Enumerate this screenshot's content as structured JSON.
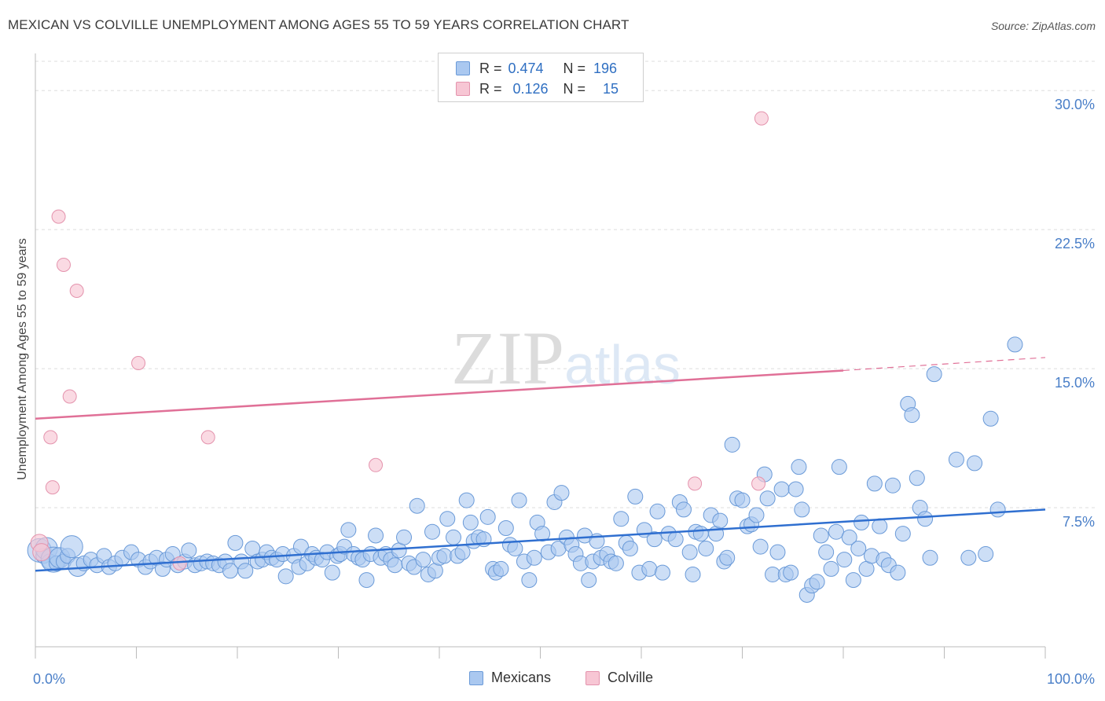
{
  "title": "MEXICAN VS COLVILLE UNEMPLOYMENT AMONG AGES 55 TO 59 YEARS CORRELATION CHART",
  "source": "Source: ZipAtlas.com",
  "colors": {
    "mexicans_fill": "#aac8f0",
    "mexicans_stroke": "#6a9ad8",
    "mexicans_line": "#2f6fd0",
    "colville_fill": "#f7c6d4",
    "colville_stroke": "#e493ad",
    "colville_line": "#e07097",
    "axis_text": "#4a7fc8",
    "grid": "#dddddd"
  },
  "legend": {
    "rows": [
      {
        "r_label": "R =",
        "r_value": "0.474",
        "n_label": "N =",
        "n_value": "196"
      },
      {
        "r_label": "R =",
        "r_value": "0.126",
        "n_label": "N =",
        "n_value": "15"
      }
    ],
    "bottom": [
      "Mexicans",
      "Colville"
    ]
  },
  "chart_data": {
    "type": "scatter",
    "title": "MEXICAN VS COLVILLE UNEMPLOYMENT AMONG AGES 55 TO 59 YEARS CORRELATION CHART",
    "xlabel": "",
    "ylabel": "Unemployment Among Ages 55 to 59 years",
    "xlim": [
      0,
      100
    ],
    "ylim": [
      0,
      32
    ],
    "x_tick_labels": [
      "0.0%",
      "100.0%"
    ],
    "y_ticks": [
      7.5,
      15.0,
      22.5,
      30.0
    ],
    "y_tick_labels": [
      "7.5%",
      "15.0%",
      "22.5%",
      "30.0%"
    ],
    "grid": true,
    "legend_position": "top-center",
    "watermark": "ZIPatlas",
    "series": [
      {
        "name": "Mexicans",
        "r": 0.474,
        "n": 196,
        "trend": {
          "x": [
            0,
            100
          ],
          "y": [
            4.1,
            7.4
          ]
        },
        "points": [
          [
            0.4,
            5.2
          ],
          [
            0.8,
            4.9
          ],
          [
            1.1,
            5.3
          ],
          [
            1.4,
            4.6
          ],
          [
            1.8,
            4.7
          ],
          [
            2.1,
            4.5
          ],
          [
            2.4,
            4.8
          ],
          [
            2.8,
            4.6
          ],
          [
            3.2,
            4.9
          ],
          [
            3.6,
            5.4
          ],
          [
            4.2,
            4.3
          ],
          [
            4.8,
            4.5
          ],
          [
            5.5,
            4.7
          ],
          [
            6.1,
            4.4
          ],
          [
            6.8,
            4.9
          ],
          [
            7.3,
            4.3
          ],
          [
            7.9,
            4.5
          ],
          [
            8.6,
            4.8
          ],
          [
            9.5,
            5.1
          ],
          [
            10.2,
            4.7
          ],
          [
            10.9,
            4.3
          ],
          [
            11.4,
            4.6
          ],
          [
            12.0,
            4.8
          ],
          [
            12.6,
            4.2
          ],
          [
            13.0,
            4.7
          ],
          [
            13.6,
            5.0
          ],
          [
            14.1,
            4.4
          ],
          [
            14.8,
            4.6
          ],
          [
            15.2,
            5.2
          ],
          [
            15.8,
            4.4
          ],
          [
            16.4,
            4.5
          ],
          [
            17.0,
            4.6
          ],
          [
            17.6,
            4.5
          ],
          [
            18.2,
            4.4
          ],
          [
            18.8,
            4.6
          ],
          [
            19.3,
            4.1
          ],
          [
            19.8,
            5.6
          ],
          [
            20.4,
            4.6
          ],
          [
            20.8,
            4.1
          ],
          [
            21.5,
            5.3
          ],
          [
            22.0,
            4.6
          ],
          [
            22.5,
            4.7
          ],
          [
            22.9,
            5.1
          ],
          [
            23.4,
            4.8
          ],
          [
            23.9,
            4.7
          ],
          [
            24.5,
            5.0
          ],
          [
            24.8,
            3.8
          ],
          [
            25.6,
            4.9
          ],
          [
            26.1,
            4.3
          ],
          [
            26.3,
            5.4
          ],
          [
            26.9,
            4.5
          ],
          [
            27.4,
            5.0
          ],
          [
            27.8,
            4.8
          ],
          [
            28.4,
            4.7
          ],
          [
            28.9,
            5.1
          ],
          [
            29.4,
            4.0
          ],
          [
            29.9,
            4.9
          ],
          [
            30.2,
            5.0
          ],
          [
            30.6,
            5.4
          ],
          [
            31.0,
            6.3
          ],
          [
            31.5,
            5.0
          ],
          [
            32.0,
            4.8
          ],
          [
            32.4,
            4.7
          ],
          [
            32.8,
            3.6
          ],
          [
            33.2,
            5.0
          ],
          [
            33.7,
            6.0
          ],
          [
            34.2,
            4.8
          ],
          [
            34.7,
            5.0
          ],
          [
            35.2,
            4.7
          ],
          [
            35.6,
            4.4
          ],
          [
            36.0,
            5.2
          ],
          [
            36.5,
            5.9
          ],
          [
            37.0,
            4.5
          ],
          [
            37.5,
            4.3
          ],
          [
            37.8,
            7.6
          ],
          [
            38.4,
            4.7
          ],
          [
            38.9,
            3.9
          ],
          [
            39.3,
            6.2
          ],
          [
            39.6,
            4.1
          ],
          [
            40.0,
            4.8
          ],
          [
            40.5,
            4.9
          ],
          [
            40.8,
            6.9
          ],
          [
            41.4,
            5.9
          ],
          [
            41.8,
            4.9
          ],
          [
            42.3,
            5.1
          ],
          [
            42.7,
            7.9
          ],
          [
            43.1,
            6.7
          ],
          [
            43.4,
            5.7
          ],
          [
            43.9,
            5.9
          ],
          [
            44.4,
            5.8
          ],
          [
            44.8,
            7.0
          ],
          [
            45.3,
            4.2
          ],
          [
            45.6,
            4.0
          ],
          [
            46.1,
            4.2
          ],
          [
            46.6,
            6.4
          ],
          [
            47.0,
            5.5
          ],
          [
            47.5,
            5.3
          ],
          [
            47.9,
            7.9
          ],
          [
            48.4,
            4.6
          ],
          [
            48.9,
            3.6
          ],
          [
            49.4,
            4.8
          ],
          [
            49.7,
            6.7
          ],
          [
            50.2,
            6.1
          ],
          [
            50.8,
            5.1
          ],
          [
            51.4,
            7.8
          ],
          [
            51.8,
            5.3
          ],
          [
            52.1,
            8.3
          ],
          [
            52.6,
            5.9
          ],
          [
            53.1,
            5.5
          ],
          [
            53.5,
            5.0
          ],
          [
            54.0,
            4.5
          ],
          [
            54.4,
            6.0
          ],
          [
            54.8,
            3.6
          ],
          [
            55.2,
            4.6
          ],
          [
            55.6,
            5.7
          ],
          [
            56.0,
            4.8
          ],
          [
            56.6,
            5.0
          ],
          [
            57.0,
            4.6
          ],
          [
            57.5,
            4.5
          ],
          [
            58.0,
            6.9
          ],
          [
            58.5,
            5.6
          ],
          [
            58.9,
            5.3
          ],
          [
            59.4,
            8.1
          ],
          [
            59.8,
            4.0
          ],
          [
            60.3,
            6.3
          ],
          [
            60.8,
            4.2
          ],
          [
            61.3,
            5.8
          ],
          [
            61.6,
            7.3
          ],
          [
            62.1,
            4.0
          ],
          [
            62.7,
            6.1
          ],
          [
            63.4,
            5.8
          ],
          [
            63.8,
            7.8
          ],
          [
            64.2,
            7.4
          ],
          [
            64.8,
            5.1
          ],
          [
            65.1,
            3.9
          ],
          [
            65.4,
            6.2
          ],
          [
            65.9,
            6.1
          ],
          [
            66.4,
            5.3
          ],
          [
            66.9,
            7.1
          ],
          [
            67.4,
            6.1
          ],
          [
            67.8,
            6.8
          ],
          [
            68.2,
            4.6
          ],
          [
            68.5,
            4.8
          ],
          [
            69.0,
            10.9
          ],
          [
            69.5,
            8.0
          ],
          [
            70.0,
            7.9
          ],
          [
            70.5,
            6.5
          ],
          [
            70.9,
            6.6
          ],
          [
            71.4,
            7.1
          ],
          [
            71.8,
            5.4
          ],
          [
            72.2,
            9.3
          ],
          [
            72.5,
            8.0
          ],
          [
            73.0,
            3.9
          ],
          [
            73.5,
            5.1
          ],
          [
            73.9,
            8.5
          ],
          [
            74.3,
            3.9
          ],
          [
            74.8,
            4.0
          ],
          [
            75.3,
            8.5
          ],
          [
            75.6,
            9.7
          ],
          [
            75.9,
            7.4
          ],
          [
            76.4,
            2.8
          ],
          [
            76.9,
            3.3
          ],
          [
            77.4,
            3.5
          ],
          [
            77.8,
            6.0
          ],
          [
            78.3,
            5.1
          ],
          [
            78.8,
            4.2
          ],
          [
            79.3,
            6.2
          ],
          [
            79.6,
            9.7
          ],
          [
            80.1,
            4.7
          ],
          [
            80.6,
            5.9
          ],
          [
            81.0,
            3.6
          ],
          [
            81.5,
            5.3
          ],
          [
            81.8,
            6.7
          ],
          [
            82.3,
            4.2
          ],
          [
            82.8,
            4.9
          ],
          [
            83.1,
            8.8
          ],
          [
            83.6,
            6.5
          ],
          [
            84.0,
            4.7
          ],
          [
            84.5,
            4.4
          ],
          [
            84.9,
            8.7
          ],
          [
            85.4,
            4.0
          ],
          [
            85.9,
            6.1
          ],
          [
            86.4,
            13.1
          ],
          [
            86.8,
            12.5
          ],
          [
            87.3,
            9.1
          ],
          [
            87.6,
            7.5
          ],
          [
            88.1,
            6.9
          ],
          [
            88.6,
            4.8
          ],
          [
            89.0,
            14.7
          ],
          [
            91.2,
            10.1
          ],
          [
            92.4,
            4.8
          ],
          [
            93.0,
            9.9
          ],
          [
            94.1,
            5.0
          ],
          [
            94.6,
            12.3
          ],
          [
            95.3,
            7.4
          ],
          [
            97.0,
            16.3
          ]
        ]
      },
      {
        "name": "Colville",
        "r": 0.126,
        "n": 15,
        "trend": {
          "x": [
            0,
            80
          ],
          "y": [
            12.3,
            14.9
          ]
        },
        "trend_dashed": {
          "x": [
            80,
            100
          ],
          "y": [
            14.9,
            15.6
          ]
        },
        "points": [
          [
            0.4,
            5.6
          ],
          [
            0.6,
            5.1
          ],
          [
            1.5,
            11.3
          ],
          [
            1.7,
            8.6
          ],
          [
            2.3,
            23.2
          ],
          [
            2.8,
            20.6
          ],
          [
            3.4,
            13.5
          ],
          [
            4.1,
            19.2
          ],
          [
            10.2,
            15.3
          ],
          [
            14.3,
            4.5
          ],
          [
            17.1,
            11.3
          ],
          [
            33.7,
            9.8
          ],
          [
            65.3,
            8.8
          ],
          [
            71.6,
            8.8
          ],
          [
            71.9,
            28.5
          ]
        ]
      }
    ]
  }
}
